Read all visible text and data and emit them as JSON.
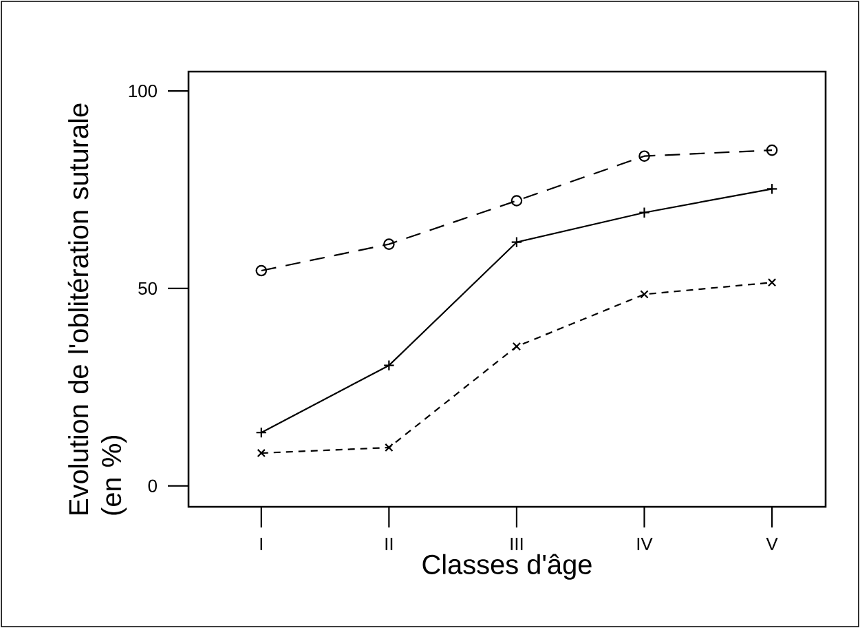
{
  "chart_data": {
    "type": "line",
    "xlabel": "Classes d'âge",
    "ylabel": "Evolution de l'oblitération suturale (en %)",
    "categories": [
      "I",
      "II",
      "III",
      "IV",
      "V"
    ],
    "series": [
      {
        "color": "#000000",
        "marker": "circle",
        "line_style": "dashed",
        "values": [
          54.5,
          61.2,
          72.2,
          83.5,
          85.0
        ]
      },
      {
        "color": "#000000",
        "marker": "cross",
        "line_style": "solid",
        "values": [
          13.5,
          30.5,
          61.7,
          69.2,
          75.2
        ]
      },
      {
        "color": "#000000",
        "marker": "x",
        "line_style": "dotted",
        "values": [
          8.3,
          9.7,
          35.3,
          48.5,
          51.5
        ]
      }
    ],
    "ylim": [
      -5.3,
      104.9
    ],
    "yticks": [
      0,
      50,
      100
    ],
    "grid": false
  }
}
